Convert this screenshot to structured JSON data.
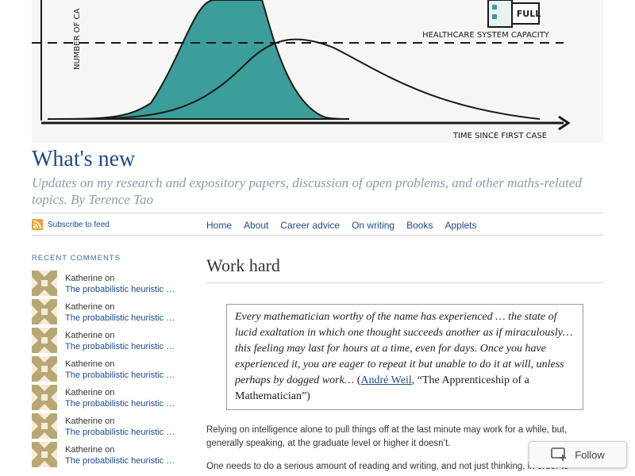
{
  "header": {
    "chart": {
      "y_axis_label": "NUMBER OF CA",
      "x_axis_label": "TIME SINCE FIRST CASE",
      "capacity_label": "HEALTHCARE SYSTEM CAPACITY",
      "hospital_sign": "FULL"
    },
    "title": "What's new",
    "tagline": "Updates on my research and expository papers, discussion of open problems, and other maths-related topics. By Terence Tao"
  },
  "nav": {
    "feed_label": "Subscribe to feed",
    "items": [
      "Home",
      "About",
      "Career advice",
      "On writing",
      "Books",
      "Applets"
    ]
  },
  "sidebar": {
    "heading": "RECENT COMMENTS",
    "comments": [
      {
        "author": "Katherine",
        "on": "on",
        "post": "The probabilistic heuristic ju…"
      },
      {
        "author": "Katherine",
        "on": "on",
        "post": "The probabilistic heuristic ju…"
      },
      {
        "author": "Katherine",
        "on": "on",
        "post": "The probabilistic heuristic ju…"
      },
      {
        "author": "Katherine",
        "on": "on",
        "post": "The probabilistic heuristic ju…"
      },
      {
        "author": "Katherine",
        "on": "on",
        "post": "The probabilistic heuristic ju…"
      },
      {
        "author": "Katherine",
        "on": "on",
        "post": "The probabilistic heuristic ju…"
      },
      {
        "author": "Katherine",
        "on": "on",
        "post": "The probabilistic heuristic ju…"
      }
    ]
  },
  "post": {
    "title": "Work hard",
    "quote": {
      "text": "Every mathematician worthy of the name has experienced … the state of lucid exaltation in which one thought succeeds another as if miraculously… this feeling may last for hours at a time, even for days. Once you have experienced it, you are eager to repeat it but unable to do it at will, unless perhaps by dogged work…",
      "open_paren": " (",
      "author": "André Weil",
      "source": ", “The Apprenticeship of a Mathematician”)"
    },
    "paragraph1": "Relying on intelligence alone to pull things off at the last minute may work for a while, but, generally speaking, at the graduate level or higher it doesn’t.",
    "paragraph2": "One needs to do a serious amount of reading and writing, and not just thinking, in order to"
  },
  "follow": {
    "label": "Follow"
  },
  "colors": {
    "link": "#1c4a8a",
    "curve_fill": "#3b9e9a",
    "tagline": "#8a9aab"
  }
}
